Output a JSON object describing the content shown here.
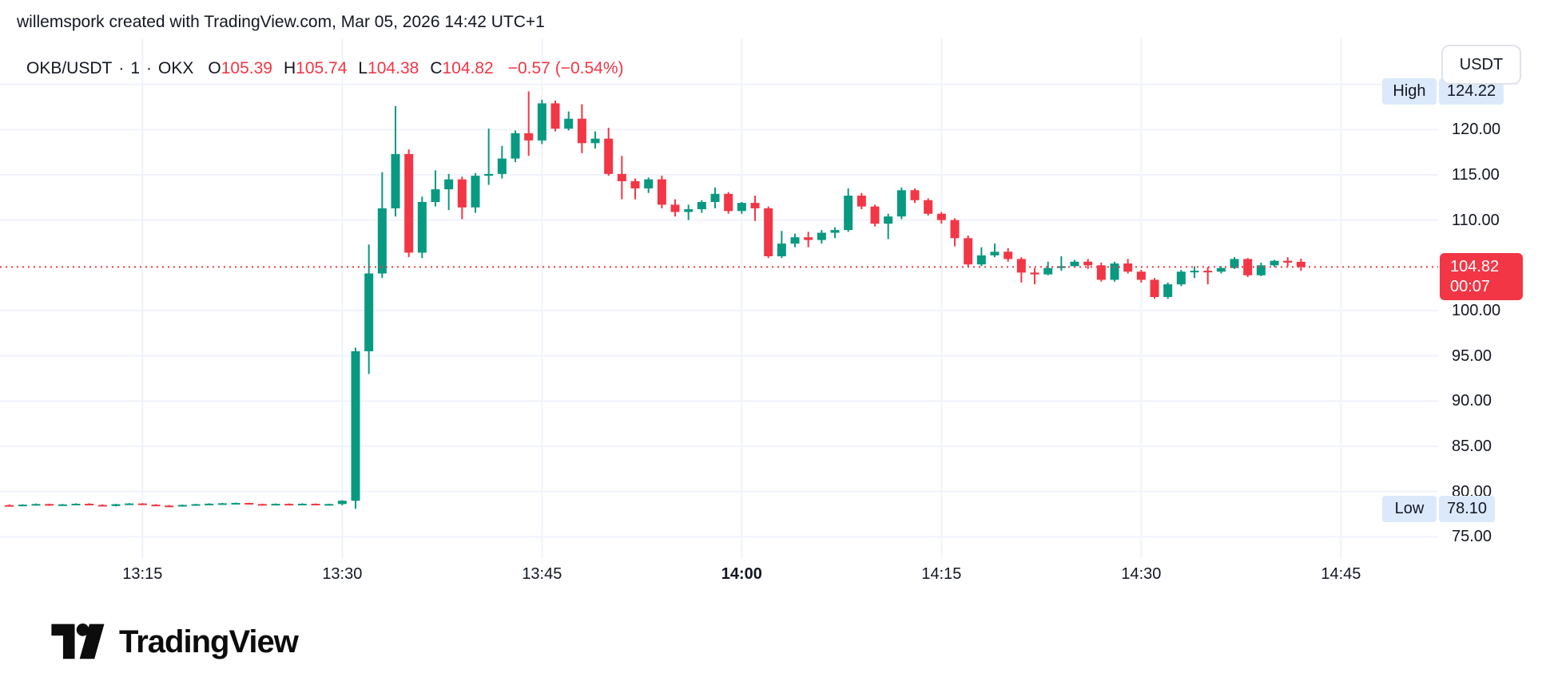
{
  "attribution": "willemspork created with TradingView.com, Mar 05, 2026 14:42 UTC+1",
  "legend": {
    "symbol": "OKB/USDT",
    "separator": "·",
    "interval": "1",
    "exchange": "OKX",
    "ohlc": [
      {
        "label": "O",
        "value": "105.39"
      },
      {
        "label": "H",
        "value": "105.74"
      },
      {
        "label": "L",
        "value": "104.38"
      },
      {
        "label": "C",
        "value": "104.82"
      }
    ],
    "change": "−0.57 (−0.54%)"
  },
  "currency_button_label": "USDT",
  "price_scale": {
    "high_label": "High",
    "high_value": "124.22",
    "low_label": "Low",
    "low_value": "78.10",
    "last_price": "104.82",
    "countdown": "00:07",
    "ticks": [
      {
        "label": "120.00",
        "price": 120
      },
      {
        "label": "115.00",
        "price": 115
      },
      {
        "label": "110.00",
        "price": 110
      },
      {
        "label": "100.00",
        "price": 100
      },
      {
        "label": "95.00",
        "price": 95
      },
      {
        "label": "90.00",
        "price": 90
      },
      {
        "label": "85.00",
        "price": 85
      },
      {
        "label": "80.00",
        "price": 80
      },
      {
        "label": "75.00",
        "price": 75
      }
    ]
  },
  "time_scale": {
    "labels": [
      {
        "label": "13:15",
        "minute": 10,
        "bold": false
      },
      {
        "label": "13:30",
        "minute": 25,
        "bold": false
      },
      {
        "label": "13:45",
        "minute": 40,
        "bold": false
      },
      {
        "label": "14:00",
        "minute": 55,
        "bold": true
      },
      {
        "label": "14:15",
        "minute": 70,
        "bold": false
      },
      {
        "label": "14:30",
        "minute": 85,
        "bold": false
      },
      {
        "label": "14:45",
        "minute": 100,
        "bold": false
      }
    ]
  },
  "footer": {
    "brand": "TradingView"
  },
  "colors": {
    "up": "#089981",
    "down": "#F23645",
    "last_line": "#F23645",
    "grid": "#F0F3FA",
    "text": "#131722",
    "badge_blue": "#DBE9FB",
    "button_border": "#E0E3EB"
  },
  "chart_data": {
    "type": "candlestick",
    "symbol": "OKB/USDT",
    "exchange": "OKX",
    "interval": "1 minute",
    "title": "OKB/USDT · 1 · OKX",
    "session_high": 124.22,
    "session_low": 78.1,
    "last": {
      "open": 105.39,
      "high": 105.74,
      "low": 104.38,
      "close": 104.82,
      "change": -0.57,
      "change_pct": -0.54
    },
    "ylim": [
      73.5,
      127.5
    ],
    "gridline_prices": [
      75,
      80,
      85,
      90,
      95,
      100,
      110,
      115,
      120,
      125
    ],
    "grid": true,
    "columns": [
      "time",
      "open",
      "high",
      "low",
      "close"
    ],
    "candles": [
      [
        "13:05",
        78.5,
        78.58,
        78.35,
        78.42
      ],
      [
        "13:06",
        78.42,
        78.6,
        78.38,
        78.55
      ],
      [
        "13:07",
        78.55,
        78.68,
        78.5,
        78.62
      ],
      [
        "13:08",
        78.62,
        78.66,
        78.42,
        78.48
      ],
      [
        "13:09",
        78.48,
        78.62,
        78.44,
        78.58
      ],
      [
        "13:10",
        78.58,
        78.7,
        78.52,
        78.65
      ],
      [
        "13:11",
        78.65,
        78.7,
        78.48,
        78.52
      ],
      [
        "13:12",
        78.52,
        78.58,
        78.36,
        78.4
      ],
      [
        "13:13",
        78.4,
        78.64,
        78.36,
        78.6
      ],
      [
        "13:14",
        78.6,
        78.72,
        78.54,
        78.68
      ],
      [
        "13:15",
        78.68,
        78.72,
        78.5,
        78.55
      ],
      [
        "13:16",
        78.55,
        78.6,
        78.4,
        78.45
      ],
      [
        "13:17",
        78.45,
        78.52,
        78.3,
        78.35
      ],
      [
        "13:18",
        78.35,
        78.56,
        78.32,
        78.52
      ],
      [
        "13:19",
        78.52,
        78.64,
        78.48,
        78.6
      ],
      [
        "13:20",
        78.6,
        78.7,
        78.55,
        78.66
      ],
      [
        "13:21",
        78.66,
        78.74,
        78.6,
        78.7
      ],
      [
        "13:22",
        78.7,
        78.78,
        78.64,
        78.74
      ],
      [
        "13:23",
        78.74,
        78.76,
        78.56,
        78.62
      ],
      [
        "13:24",
        78.62,
        78.66,
        78.46,
        78.52
      ],
      [
        "13:25",
        78.52,
        78.68,
        78.48,
        78.64
      ],
      [
        "13:26",
        78.64,
        78.68,
        78.5,
        78.55
      ],
      [
        "13:27",
        78.55,
        78.7,
        78.52,
        78.65
      ],
      [
        "13:28",
        78.65,
        78.68,
        78.5,
        78.56
      ],
      [
        "13:29",
        78.56,
        78.66,
        78.52,
        78.62
      ],
      [
        "13:30",
        78.62,
        79.05,
        78.48,
        78.98
      ],
      [
        "13:31",
        78.98,
        95.9,
        78.1,
        95.5
      ],
      [
        "13:32",
        95.5,
        107.3,
        93.0,
        104.1
      ],
      [
        "13:33",
        104.1,
        115.3,
        103.6,
        111.3
      ],
      [
        "13:34",
        111.3,
        122.6,
        110.4,
        117.3
      ],
      [
        "13:35",
        117.3,
        117.8,
        105.9,
        106.4
      ],
      [
        "13:36",
        106.4,
        112.6,
        105.8,
        112.0
      ],
      [
        "13:37",
        112.0,
        115.5,
        111.5,
        113.4
      ],
      [
        "13:38",
        113.4,
        115.1,
        111.1,
        114.5
      ],
      [
        "13:39",
        114.5,
        114.8,
        110.1,
        111.4
      ],
      [
        "13:40",
        111.4,
        115.2,
        110.8,
        114.9
      ],
      [
        "13:41",
        114.9,
        120.1,
        113.9,
        115.1
      ],
      [
        "13:42",
        115.1,
        118.2,
        114.6,
        116.8
      ],
      [
        "13:43",
        116.8,
        119.9,
        116.4,
        119.6
      ],
      [
        "13:44",
        119.6,
        124.22,
        117.1,
        118.8
      ],
      [
        "13:45",
        118.8,
        123.3,
        118.4,
        122.9
      ],
      [
        "13:46",
        122.9,
        123.2,
        119.8,
        120.1
      ],
      [
        "13:47",
        120.1,
        122.0,
        119.9,
        121.2
      ],
      [
        "13:48",
        121.2,
        122.8,
        117.4,
        118.5
      ],
      [
        "13:49",
        118.5,
        119.8,
        117.9,
        119.0
      ],
      [
        "13:50",
        119.0,
        120.2,
        114.9,
        115.1
      ],
      [
        "13:51",
        115.1,
        117.1,
        112.3,
        114.3
      ],
      [
        "13:52",
        114.3,
        114.6,
        112.3,
        113.5
      ],
      [
        "13:53",
        113.5,
        114.7,
        113.0,
        114.5
      ],
      [
        "13:54",
        114.5,
        114.9,
        111.3,
        111.7
      ],
      [
        "13:55",
        111.7,
        112.3,
        110.4,
        110.9
      ],
      [
        "13:56",
        110.9,
        111.7,
        110.0,
        111.2
      ],
      [
        "13:57",
        111.2,
        112.2,
        110.8,
        112.0
      ],
      [
        "13:58",
        112.0,
        113.6,
        111.3,
        112.9
      ],
      [
        "13:59",
        112.9,
        113.1,
        110.7,
        111.0
      ],
      [
        "14:00",
        111.0,
        112.0,
        110.7,
        111.9
      ],
      [
        "14:01",
        111.9,
        112.7,
        109.9,
        111.3
      ],
      [
        "14:02",
        111.3,
        111.5,
        105.8,
        106.0
      ],
      [
        "14:03",
        106.0,
        108.8,
        105.8,
        107.4
      ],
      [
        "14:04",
        107.4,
        108.5,
        107.0,
        108.1
      ],
      [
        "14:05",
        108.1,
        108.7,
        107.0,
        107.8
      ],
      [
        "14:06",
        107.8,
        108.9,
        107.4,
        108.6
      ],
      [
        "14:07",
        108.6,
        109.2,
        108.0,
        108.9
      ],
      [
        "14:08",
        108.9,
        113.5,
        108.7,
        112.7
      ],
      [
        "14:09",
        112.7,
        113.0,
        111.2,
        111.5
      ],
      [
        "14:10",
        111.5,
        111.7,
        109.3,
        109.6
      ],
      [
        "14:11",
        109.6,
        110.7,
        107.9,
        110.4
      ],
      [
        "14:12",
        110.4,
        113.6,
        110.1,
        113.3
      ],
      [
        "14:13",
        113.3,
        113.5,
        111.9,
        112.2
      ],
      [
        "14:14",
        112.2,
        112.4,
        110.5,
        110.7
      ],
      [
        "14:15",
        110.7,
        110.9,
        109.6,
        110.0
      ],
      [
        "14:16",
        110.0,
        110.2,
        107.1,
        108.0
      ],
      [
        "14:17",
        108.0,
        108.3,
        104.9,
        105.1
      ],
      [
        "14:18",
        105.1,
        107.0,
        104.9,
        106.1
      ],
      [
        "14:19",
        106.1,
        107.4,
        105.9,
        106.5
      ],
      [
        "14:20",
        106.5,
        106.9,
        105.4,
        105.7
      ],
      [
        "14:21",
        105.7,
        105.9,
        103.1,
        104.2
      ],
      [
        "14:22",
        104.2,
        104.7,
        102.9,
        104.0
      ],
      [
        "14:23",
        104.0,
        105.4,
        103.9,
        104.7
      ],
      [
        "14:24",
        104.7,
        106.0,
        104.4,
        104.9
      ],
      [
        "14:25",
        104.9,
        105.6,
        104.8,
        105.4
      ],
      [
        "14:26",
        105.4,
        105.7,
        104.6,
        105.0
      ],
      [
        "14:27",
        105.0,
        105.3,
        103.2,
        103.4
      ],
      [
        "14:28",
        103.4,
        105.4,
        103.2,
        105.2
      ],
      [
        "14:29",
        105.2,
        105.7,
        104.1,
        104.3
      ],
      [
        "14:30",
        104.3,
        104.5,
        103.1,
        103.4
      ],
      [
        "14:31",
        103.4,
        103.6,
        101.3,
        101.5
      ],
      [
        "14:32",
        101.5,
        103.1,
        101.3,
        102.9
      ],
      [
        "14:33",
        102.9,
        104.5,
        102.7,
        104.3
      ],
      [
        "14:34",
        104.3,
        104.9,
        103.6,
        104.4
      ],
      [
        "14:35",
        104.4,
        104.8,
        102.9,
        104.3
      ],
      [
        "14:36",
        104.3,
        104.9,
        104.1,
        104.7
      ],
      [
        "14:37",
        104.7,
        105.9,
        104.6,
        105.7
      ],
      [
        "14:38",
        105.7,
        105.8,
        103.7,
        103.9
      ],
      [
        "14:39",
        103.9,
        105.3,
        103.8,
        105.0
      ],
      [
        "14:40",
        105.0,
        105.6,
        104.8,
        105.5
      ],
      [
        "14:41",
        105.5,
        105.9,
        104.9,
        105.3
      ],
      [
        "14:42",
        105.39,
        105.74,
        104.38,
        104.82
      ]
    ]
  }
}
